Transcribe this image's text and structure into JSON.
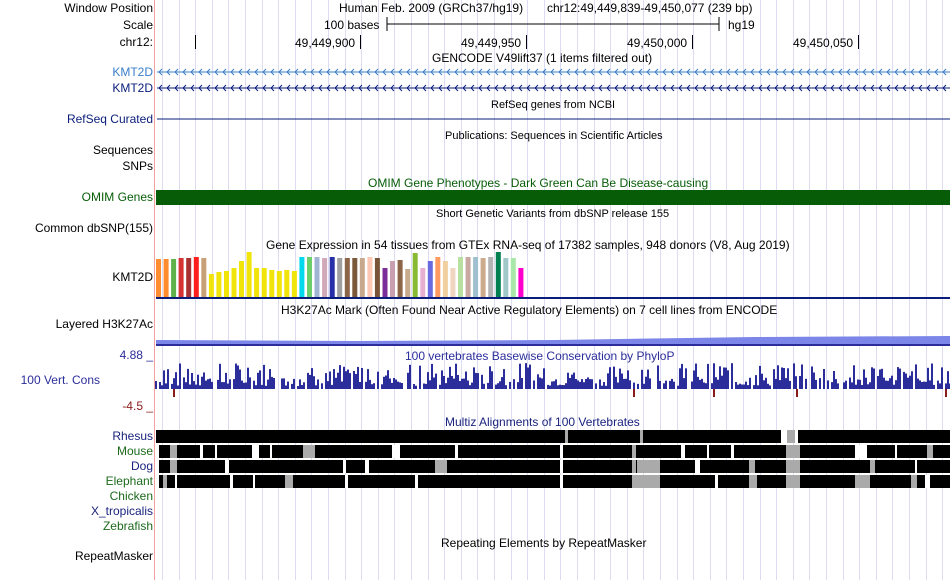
{
  "header": {
    "window_position_label": "Window Position",
    "scale_label": "Scale",
    "chrom_label": "chr12:",
    "assembly_title": "Human Feb. 2009 (GRCh37/hg19)",
    "window_range": "chr12:49,449,839-49,450,077 (239 bp)",
    "scale_text": "100 bases",
    "assembly_short": "hg19",
    "ruler_ticks": [
      "49,449,900",
      "49,449,950",
      "49,450,000",
      "49,450,050"
    ]
  },
  "tracks": {
    "gencode": {
      "title": "GENCODE V49lift37 (1 items filtered out)",
      "labels": [
        "KMT2D",
        "KMT2D"
      ],
      "color_light": "#3a7ec8",
      "color_dark": "#0a1d7a"
    },
    "refseq": {
      "title": "RefSeq genes from NCBI",
      "label": "RefSeq Curated",
      "color": "#0a1d7a"
    },
    "publications": {
      "title": "Publications: Sequences in Scientific Articles",
      "labels": [
        "Sequences",
        "SNPs"
      ]
    },
    "omim": {
      "title": "OMIM Gene Phenotypes - Dark Green Can Be Disease-causing",
      "label": "OMIM Genes",
      "color": "#075d07"
    },
    "dbsnp": {
      "title": "Short Genetic Variants from dbSNP release 155",
      "label": "Common dbSNP(155)"
    },
    "gtex": {
      "title": "Gene Expression in 54 tissues from GTEx RNA-seq of 17382 samples, 948 donors (V8, Aug 2019)",
      "label": "KMT2D",
      "bars": [
        {
          "c": "#ff8c2f",
          "v": 0.95
        },
        {
          "c": "#ff8c2f",
          "v": 0.95
        },
        {
          "c": "#5fb34b",
          "v": 0.95
        },
        {
          "c": "#d63333",
          "v": 0.98
        },
        {
          "c": "#a83232",
          "v": 0.98
        },
        {
          "c": "#ff1e1e",
          "v": 1.0
        },
        {
          "c": "#c8a078",
          "v": 0.98
        },
        {
          "c": "#f0e40a",
          "v": 0.58
        },
        {
          "c": "#f0e40a",
          "v": 0.62
        },
        {
          "c": "#f0e40a",
          "v": 0.65
        },
        {
          "c": "#f0e40a",
          "v": 0.72
        },
        {
          "c": "#f0e40a",
          "v": 0.9
        },
        {
          "c": "#f0e40a",
          "v": 1.12
        },
        {
          "c": "#f0e40a",
          "v": 0.72
        },
        {
          "c": "#f0e40a",
          "v": 0.72
        },
        {
          "c": "#f0e40a",
          "v": 0.68
        },
        {
          "c": "#f0e40a",
          "v": 0.65
        },
        {
          "c": "#f0e40a",
          "v": 0.68
        },
        {
          "c": "#f0e40a",
          "v": 0.65
        },
        {
          "c": "#00d8ee",
          "v": 1.0
        },
        {
          "c": "#6bd06b",
          "v": 1.0
        },
        {
          "c": "#a0b4d4",
          "v": 1.0
        },
        {
          "c": "#d0a8b8",
          "v": 0.98
        },
        {
          "c": "#2830a8",
          "v": 1.0
        },
        {
          "c": "#a0a0a0",
          "v": 0.98
        },
        {
          "c": "#8c6448",
          "v": 0.98
        },
        {
          "c": "#7a583a",
          "v": 0.98
        },
        {
          "c": "#c8a88c",
          "v": 0.98
        },
        {
          "c": "#ffc8b4",
          "v": 1.0
        },
        {
          "c": "#7a5438",
          "v": 0.98
        },
        {
          "c": "#7b2d9a",
          "v": 0.72
        },
        {
          "c": "#c8a0b0",
          "v": 0.9
        },
        {
          "c": "#8c6448",
          "v": 0.92
        },
        {
          "c": "#c8aa8c",
          "v": 0.7
        },
        {
          "c": "#88bb33",
          "v": 1.1
        },
        {
          "c": "#e8b0d0",
          "v": 0.72
        },
        {
          "c": "#6a6ae0",
          "v": 0.9
        },
        {
          "c": "#ff9a60",
          "v": 1.0
        },
        {
          "c": "#f0d0a0",
          "v": 0.9
        },
        {
          "c": "#f0d6c0",
          "v": 0.72
        },
        {
          "c": "#b8e0a0",
          "v": 1.0
        },
        {
          "c": "#c8a8a0",
          "v": 1.0
        },
        {
          "c": "#a0c0d0",
          "v": 1.0
        },
        {
          "c": "#ccaa8c",
          "v": 0.98
        },
        {
          "c": "#b4b4b4",
          "v": 1.0
        },
        {
          "c": "#008050",
          "v": 1.12
        },
        {
          "c": "#a0c8c8",
          "v": 0.98
        },
        {
          "c": "#a8e8a8",
          "v": 0.98
        },
        {
          "c": "#ff00cc",
          "v": 0.72
        }
      ]
    },
    "h3k27ac": {
      "title": "H3K27Ac Mark (Often Found Near Active Regulatory Elements) on 7 cell lines from ENCODE",
      "label": "Layered H3K27Ac"
    },
    "conservation": {
      "title": "100 vertebrates Basewise Conservation by PhyloP",
      "label": "100 Vert. Cons",
      "max_label": "4.88 _",
      "min_label": "-4.5 _",
      "color": "#2b2d9a"
    },
    "multiz": {
      "title": "Multiz Alignments of 100 Vertebrates",
      "species": [
        {
          "name": "Rhesus",
          "color": "#1a237e"
        },
        {
          "name": "Mouse",
          "color": "#1c6a1c"
        },
        {
          "name": "Dog",
          "color": "#1a237e"
        },
        {
          "name": "Elephant",
          "color": "#1c6a1c"
        },
        {
          "name": "Chicken",
          "color": "#1c6a1c"
        },
        {
          "name": "X_tropicalis",
          "color": "#1a237e"
        },
        {
          "name": "Zebrafish",
          "color": "#1c6a1c"
        }
      ]
    },
    "repeatmasker": {
      "title": "Repeating Elements by RepeatMasker",
      "label": "RepeatMasker"
    }
  }
}
